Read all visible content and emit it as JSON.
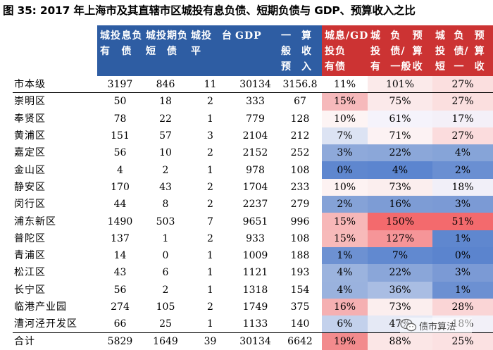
{
  "title": "图 35:  2017 年上海市及其直辖市区城投有息负债、短期负债与 GDP、预算收入之比",
  "headers": [
    {
      "lines": [
        ""
      ],
      "style": "c0"
    },
    {
      "lines": [
        "城投有",
        "息负债"
      ],
      "style": "blue"
    },
    {
      "lines": [
        "城投短",
        "期负债"
      ],
      "style": "blue"
    },
    {
      "lines": [
        "城投平",
        "台"
      ],
      "style": "blue"
    },
    {
      "lines": [
        "GDP"
      ],
      "style": "blue"
    },
    {
      "lines": [
        "一般预",
        "算收入"
      ],
      "style": "blue"
    },
    {
      "lines": [
        "城投有",
        "息负债",
        "/GDP"
      ],
      "style": "red"
    },
    {
      "lines": [
        "城投有息",
        "负债/一般",
        "预算收入"
      ],
      "style": "red"
    },
    {
      "lines": [
        "城投短期",
        "负债/一般",
        "预算收入"
      ],
      "style": "red"
    }
  ],
  "rows": [
    {
      "name": "市本级",
      "debt": "3197",
      "short": "846",
      "platforms": "11",
      "gdp": "30134",
      "budget": "3156.8",
      "r1": "11%",
      "r2": "101%",
      "r3": "27%",
      "c1": "#ffffff",
      "c2": "#fbeaea",
      "c3": "#fbdfdf"
    },
    {
      "name": "崇明区",
      "debt": "50",
      "short": "18",
      "platforms": "2",
      "gdp": "333",
      "budget": "67",
      "r1": "15%",
      "r2": "75%",
      "r3": "27%",
      "c1": "#f6b9bb",
      "c2": "#fbe9ea",
      "c3": "#fbdfdf"
    },
    {
      "name": "奉贤区",
      "debt": "78",
      "short": "22",
      "platforms": "1",
      "gdp": "779",
      "budget": "128",
      "r1": "10%",
      "r2": "61%",
      "r3": "17%",
      "c1": "#fdf4f4",
      "c2": "#f5f3fb",
      "c3": "#f4f0f8"
    },
    {
      "name": "黄浦区",
      "debt": "151",
      "short": "57",
      "platforms": "3",
      "gdp": "2104",
      "budget": "212",
      "r1": "7%",
      "r2": "71%",
      "r3": "27%",
      "c1": "#dce3f3",
      "c2": "#fcf2f3",
      "c3": "#fbdcdd"
    },
    {
      "name": "嘉定区",
      "debt": "56",
      "short": "10",
      "platforms": "2",
      "gdp": "2152",
      "budget": "252",
      "r1": "3%",
      "r2": "22%",
      "r3": "4%",
      "c1": "#8ea9da",
      "c2": "#8ba7d9",
      "c3": "#86a4d8"
    },
    {
      "name": "金山区",
      "debt": "4",
      "short": "2",
      "platforms": "1",
      "gdp": "978",
      "budget": "108",
      "r1": "0%",
      "r2": "4%",
      "r3": "2%",
      "c1": "#5f87cf",
      "c2": "#5c85cf",
      "c3": "#6a8fd2"
    },
    {
      "name": "静安区",
      "debt": "170",
      "short": "43",
      "platforms": "2",
      "gdp": "1704",
      "budget": "233",
      "r1": "10%",
      "r2": "73%",
      "r3": "18%",
      "c1": "#fdf2f2",
      "c2": "#fbeeee",
      "c3": "#f1eff8"
    },
    {
      "name": "闵行区",
      "debt": "44",
      "short": "8",
      "platforms": "2",
      "gdp": "2237",
      "budget": "279",
      "r1": "2%",
      "r2": "16%",
      "r3": "3%",
      "c1": "#85a2d7",
      "c2": "#7d9cd5",
      "c3": "#7b9ad5"
    },
    {
      "name": "浦东新区",
      "debt": "1490",
      "short": "503",
      "platforms": "7",
      "gdp": "9651",
      "budget": "996",
      "r1": "15%",
      "r2": "150%",
      "r3": "51%",
      "c1": "#f7b7b8",
      "c2": "#f36a6d",
      "c3": "#f36a6d"
    },
    {
      "name": "普陀区",
      "debt": "137",
      "short": "1",
      "platforms": "2",
      "gdp": "933",
      "budget": "108",
      "r1": "15%",
      "r2": "127%",
      "r3": "1%",
      "c1": "#f7baba",
      "c2": "#f69598",
      "c3": "#5f87cf"
    },
    {
      "name": "青浦区",
      "debt": "14",
      "short": "0",
      "platforms": "1",
      "gdp": "1009",
      "budget": "188",
      "r1": "1%",
      "r2": "7%",
      "r3": "0%",
      "c1": "#6d91d2",
      "c2": "#6189d0",
      "c3": "#5b84ce"
    },
    {
      "name": "松江区",
      "debt": "43",
      "short": "6",
      "platforms": "1",
      "gdp": "1121",
      "budget": "193",
      "r1": "4%",
      "r2": "22%",
      "r3": "3%",
      "c1": "#9bb3de",
      "c2": "#8aa6d9",
      "c3": "#7b9ad5"
    },
    {
      "name": "长宁区",
      "debt": "56",
      "short": "2",
      "platforms": "1",
      "gdp": "1318",
      "budget": "154",
      "r1": "4%",
      "r2": "36%",
      "r3": "1%",
      "c1": "#9ab2de",
      "c2": "#a9bde3",
      "c3": "#6c90d2"
    },
    {
      "name": "临港产业园",
      "debt": "274",
      "short": "105",
      "platforms": "2",
      "gdp": "1749",
      "budget": "375",
      "r1": "16%",
      "r2": "73%",
      "r3": "28%",
      "c1": "#f5b0b2",
      "c2": "#fbeeee",
      "c3": "#fad5d6"
    },
    {
      "name": "漕河泾开发区",
      "debt": "66",
      "short": "25",
      "platforms": "1",
      "gdp": "1133",
      "budget": "140",
      "r1": "6%",
      "r2": "47%",
      "r3": "18%",
      "c1": "#c3d1ec",
      "c2": "#e5e9f5",
      "c3": "#f2f0f8"
    },
    {
      "name": "合计",
      "debt": "5829",
      "short": "1649",
      "platforms": "39",
      "gdp": "30134",
      "budget": "6642",
      "r1": "19%",
      "r2": "88%",
      "r3": "25%",
      "c1": "#f28b8d",
      "c2": "#fbe6e6",
      "c3": "#fbe1e2"
    }
  ],
  "watermark": {
    "text": "债市算法",
    "icon": "wechat-icon"
  }
}
